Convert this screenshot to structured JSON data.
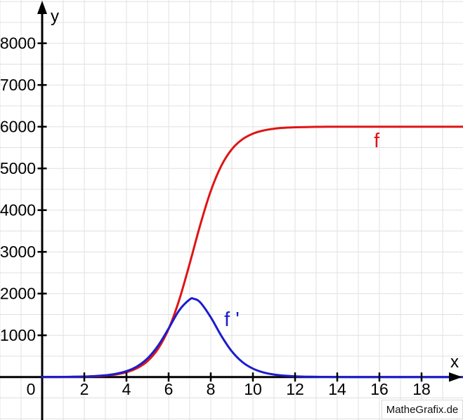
{
  "chart_data": {
    "type": "line",
    "title": "",
    "watermark": "MatheGrafix.de",
    "colors": {
      "f": "#e01414",
      "f_prime": "#1c1ccd",
      "grid": "#e0e0e0",
      "axis": "#000000",
      "text": "#000000"
    },
    "axis": {
      "xlabel": "x",
      "ylabel": "y",
      "origin_label": "0",
      "x_ticks": [
        2,
        4,
        6,
        8,
        10,
        12,
        14,
        16,
        18
      ],
      "y_ticks": [
        1000,
        2000,
        3000,
        4000,
        5000,
        6000,
        7000,
        8000
      ],
      "x_grid_step": 1,
      "y_grid_step": 500,
      "x_visible_range": [
        -2,
        20
      ],
      "y_visible_range": [
        -1030,
        9040
      ],
      "grid": true
    },
    "series": [
      {
        "name": "f",
        "label": "f",
        "color_key": "f",
        "label_at": {
          "x": 15.87,
          "y": 5675
        },
        "points": [
          [
            0,
            1
          ],
          [
            0.5,
            1
          ],
          [
            1,
            3
          ],
          [
            1.5,
            5
          ],
          [
            2,
            10
          ],
          [
            2.5,
            18
          ],
          [
            3,
            33
          ],
          [
            3.5,
            62
          ],
          [
            4,
            115
          ],
          [
            4.5,
            211
          ],
          [
            5,
            382
          ],
          [
            5.5,
            677
          ],
          [
            6,
            1152
          ],
          [
            6.5,
            1844
          ],
          [
            7,
            2720
          ],
          [
            7.5,
            3646
          ],
          [
            8,
            4459
          ],
          [
            8.5,
            5063
          ],
          [
            9,
            5460
          ],
          [
            9.5,
            5698
          ],
          [
            10,
            5834
          ],
          [
            10.5,
            5910
          ],
          [
            11,
            5952
          ],
          [
            11.5,
            5974
          ],
          [
            12,
            5986
          ],
          [
            12.5,
            5992
          ],
          [
            13,
            5996
          ],
          [
            13.5,
            5998
          ],
          [
            14,
            5999
          ],
          [
            15,
            6000
          ],
          [
            16,
            6000
          ],
          [
            17,
            6000
          ],
          [
            18,
            6000
          ],
          [
            19,
            6000
          ],
          [
            20,
            6000
          ]
        ]
      },
      {
        "name": "f'",
        "label": "f '",
        "color_key": "f_prime",
        "label_at": {
          "x": 9.0,
          "y": 1390
        },
        "points": [
          [
            0,
            1
          ],
          [
            0.5,
            2
          ],
          [
            1,
            3
          ],
          [
            1.5,
            6
          ],
          [
            2,
            12
          ],
          [
            2.5,
            22
          ],
          [
            3,
            41
          ],
          [
            3.5,
            77
          ],
          [
            4,
            141
          ],
          [
            4.5,
            254
          ],
          [
            5,
            447
          ],
          [
            5.5,
            751
          ],
          [
            6,
            1163
          ],
          [
            6.5,
            1597
          ],
          [
            7,
            1859
          ],
          [
            7.2,
            1874
          ],
          [
            7.5,
            1788
          ],
          [
            8,
            1431
          ],
          [
            8.5,
            988
          ],
          [
            9,
            615
          ],
          [
            9.5,
            358
          ],
          [
            10,
            201
          ],
          [
            10.5,
            110
          ],
          [
            11,
            60
          ],
          [
            11.5,
            32
          ],
          [
            12,
            17
          ],
          [
            12.5,
            9
          ],
          [
            13,
            5
          ],
          [
            13.5,
            3
          ],
          [
            14,
            1
          ],
          [
            15,
            0
          ],
          [
            16,
            0
          ],
          [
            17,
            0
          ],
          [
            18,
            0
          ],
          [
            19,
            0
          ],
          [
            20,
            0
          ]
        ]
      }
    ]
  }
}
